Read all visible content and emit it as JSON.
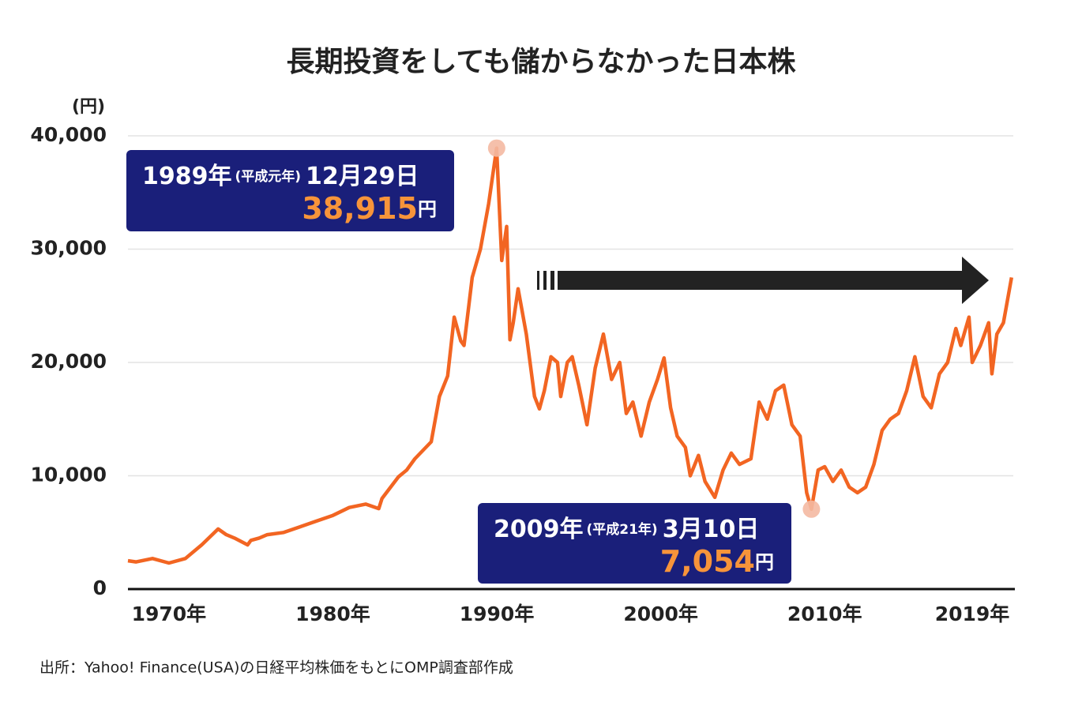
{
  "chart_data": {
    "type": "line",
    "title": "長期投資をしても儲からなかった日本株",
    "y_label": "(円)",
    "source": "出所：Yahoo! Finance(USA)の日経平均株価をもとにOMP調査部作成",
    "color": "#f26522",
    "grid": true,
    "xlim": [
      1967.5,
      2021.6
    ],
    "ylim": [
      0,
      40000
    ],
    "xticks": [
      {
        "value": 1970,
        "label": "1970年"
      },
      {
        "value": 1980,
        "label": "1980年"
      },
      {
        "value": 1990,
        "label": "1990年"
      },
      {
        "value": 2000,
        "label": "2000年"
      },
      {
        "value": 2010,
        "label": "2010年"
      },
      {
        "value": 2019,
        "label": "2019年"
      }
    ],
    "yticks": [
      0,
      {
        "value": 10000,
        "label": "10,000"
      },
      {
        "value": 20000,
        "label": "20,000"
      },
      {
        "value": 30000,
        "label": "30,000"
      },
      {
        "value": 40000,
        "label": "40,000"
      }
    ],
    "x": [
      1967.5,
      1968,
      1969,
      1970,
      1971,
      1972,
      1973,
      1973.5,
      1974,
      1974.8,
      1975,
      1975.5,
      1976,
      1977,
      1978,
      1979,
      1980,
      1981,
      1982,
      1982.8,
      1983,
      1984,
      1984.5,
      1985,
      1986,
      1986.5,
      1987,
      1987.4,
      1987.8,
      1988,
      1988.5,
      1989,
      1989.5,
      1989.99,
      1990.3,
      1990.6,
      1990.8,
      1991,
      1991.3,
      1991.8,
      1992.3,
      1992.6,
      1992.9,
      1993.3,
      1993.7,
      1993.9,
      1994.3,
      1994.6,
      1995,
      1995.5,
      1996,
      1996.5,
      1997,
      1997.5,
      1997.9,
      1998.3,
      1998.8,
      1999.3,
      1999.8,
      2000.2,
      2000.6,
      2001,
      2001.5,
      2001.8,
      2002.3,
      2002.7,
      2003.3,
      2003.8,
      2004.3,
      2004.8,
      2005.5,
      2006,
      2006.5,
      2007,
      2007.5,
      2008,
      2008.5,
      2008.9,
      2009.19,
      2009.6,
      2010,
      2010.5,
      2011,
      2011.5,
      2012,
      2012.5,
      2013,
      2013.5,
      2014,
      2014.5,
      2015,
      2015.5,
      2016,
      2016.5,
      2017,
      2017.5,
      2018,
      2018.3,
      2018.8,
      2019,
      2019.5,
      2020,
      2020.2,
      2020.5,
      2020.9,
      2021.4
    ],
    "values": [
      2500,
      2400,
      2700,
      2300,
      2700,
      3900,
      5300,
      4800,
      4500,
      3900,
      4300,
      4500,
      4800,
      5000,
      5500,
      6000,
      6500,
      7200,
      7500,
      7100,
      8000,
      9900,
      10500,
      11500,
      13000,
      17000,
      18800,
      24000,
      21900,
      21500,
      27500,
      30000,
      34000,
      38915,
      29000,
      32000,
      22000,
      23500,
      26500,
      22500,
      17000,
      15900,
      17500,
      20500,
      20000,
      17000,
      20000,
      20500,
      18000,
      14500,
      19500,
      22500,
      18500,
      20000,
      15500,
      16500,
      13500,
      16500,
      18500,
      20400,
      16000,
      13500,
      12500,
      10000,
      11800,
      9500,
      8100,
      10500,
      12000,
      11000,
      11500,
      16500,
      15000,
      17500,
      18000,
      14500,
      13500,
      8500,
      7054,
      10500,
      10800,
      9500,
      10500,
      9000,
      8500,
      9000,
      11000,
      14000,
      15000,
      15500,
      17500,
      20500,
      17000,
      16000,
      19000,
      20000,
      23000,
      21500,
      24000,
      20000,
      21500,
      23500,
      19000,
      22500,
      23500,
      27500
    ],
    "annotations": [
      {
        "x": 1989.99,
        "value": 38915,
        "year_label": "1989年",
        "era_label": "(平成元年)",
        "day_label": "12月29日",
        "value_label": "38,915",
        "unit": "円"
      },
      {
        "x": 2009.19,
        "value": 7054,
        "year_label": "2009年",
        "era_label": "(平成21年)",
        "day_label": "3月10日",
        "value_label": "7,054",
        "unit": "円"
      }
    ]
  }
}
